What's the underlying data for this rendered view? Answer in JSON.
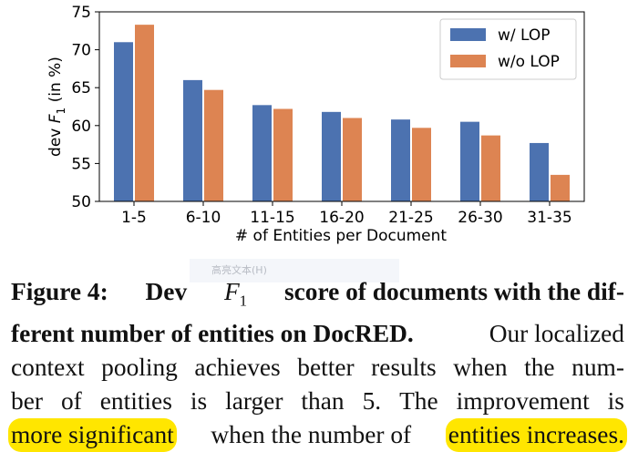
{
  "chart_data": {
    "type": "bar",
    "categories": [
      "1-5",
      "6-10",
      "11-15",
      "16-20",
      "21-25",
      "26-30",
      "31-35"
    ],
    "series": [
      {
        "name": "w/ LOP",
        "color": "#4c72b0",
        "values": [
          71.0,
          66.0,
          62.7,
          61.8,
          60.8,
          60.5,
          57.7
        ]
      },
      {
        "name": "w/o LOP",
        "color": "#dd8452",
        "values": [
          73.3,
          64.7,
          62.2,
          61.0,
          59.7,
          58.7,
          53.5
        ]
      }
    ],
    "xlabel": "# of Entities per Document",
    "ylabel": "dev F1 (in %)",
    "ylim": [
      50,
      75
    ],
    "yticks": [
      50,
      55,
      60,
      65,
      70,
      75
    ],
    "legend_position": "top-right",
    "grid": false
  },
  "tooltip": {
    "text": "高亮文本(H)"
  },
  "caption": {
    "label": "Figure 4:",
    "bold_a": "Dev",
    "math": "F",
    "math_sub": "1",
    "bold_b": "score of documents with the dif-",
    "bold_c": "ferent number of entities on DocRED.",
    "rest_1": "Our localized",
    "line3": [
      "context",
      "pooling",
      "achieves",
      "better",
      "results",
      "when",
      "the",
      "num-"
    ],
    "line4": [
      "ber",
      "of",
      "entities",
      "is",
      "larger",
      "than",
      "5.",
      "The",
      "improvement",
      "is"
    ],
    "hl_1": "more significant",
    "mid_5": "when the number of",
    "hl_2": "entities increases."
  }
}
